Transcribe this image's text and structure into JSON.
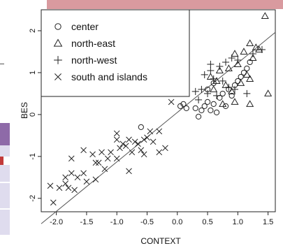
{
  "colors": {
    "topbar": "#d99a9f",
    "accent_purple": "#8e6aa8",
    "light_panel": "#dfdcee",
    "accent_red": "#c23a3a"
  },
  "chart_data": {
    "type": "scatter",
    "xlabel": "CONTEXT",
    "ylabel": "BES",
    "xlim": [
      -2.25,
      1.62
    ],
    "ylim": [
      -2.32,
      2.5
    ],
    "x_ticks": [
      "-2.0",
      "-1.5",
      "-1.0",
      "-0.5",
      "0.0",
      "0.5",
      "1.0",
      "1.5"
    ],
    "y_ticks": [
      "-2",
      "-1",
      "0",
      "1",
      "2"
    ],
    "legend_position": "top-left",
    "legend": [
      {
        "marker": "circle",
        "label": "center"
      },
      {
        "marker": "triangle",
        "label": "north-east"
      },
      {
        "marker": "plus",
        "label": "north-west"
      },
      {
        "marker": "x",
        "label": "south and islands"
      }
    ],
    "fit_line": {
      "intercept": 0.05,
      "slope": 1.18
    },
    "series": [
      {
        "name": "center",
        "marker": "circle",
        "points": [
          [
            -0.6,
            -0.3
          ],
          [
            0.05,
            0.2
          ],
          [
            0.1,
            0.25
          ],
          [
            0.15,
            0.15
          ],
          [
            0.3,
            0.15
          ],
          [
            0.35,
            -0.05
          ],
          [
            0.4,
            0.1
          ],
          [
            0.45,
            0.2
          ],
          [
            0.5,
            0.3
          ],
          [
            0.55,
            0.1
          ],
          [
            0.6,
            0.25
          ],
          [
            0.65,
            0.05
          ],
          [
            0.7,
            0.4
          ],
          [
            0.75,
            0.5
          ],
          [
            0.8,
            0.2
          ],
          [
            0.85,
            0.6
          ],
          [
            0.9,
            0.45
          ],
          [
            0.95,
            0.7
          ],
          [
            1.0,
            0.8
          ],
          [
            1.05,
            0.9
          ],
          [
            1.1,
            1.0
          ],
          [
            1.15,
            1.1
          ],
          [
            1.2,
            1.25
          ],
          [
            0.5,
            0.6
          ],
          [
            0.6,
            0.75
          ]
        ]
      },
      {
        "name": "north-east",
        "marker": "triangle",
        "points": [
          [
            1.45,
            2.35
          ],
          [
            1.2,
            1.7
          ],
          [
            1.3,
            1.6
          ],
          [
            1.1,
            1.5
          ],
          [
            0.95,
            1.45
          ],
          [
            1.25,
            1.35
          ],
          [
            1.0,
            1.2
          ],
          [
            0.85,
            1.1
          ],
          [
            0.7,
            1.05
          ],
          [
            1.15,
            0.95
          ],
          [
            0.65,
            0.8
          ],
          [
            0.8,
            0.7
          ],
          [
            0.9,
            0.55
          ],
          [
            1.05,
            0.75
          ],
          [
            1.2,
            0.85
          ],
          [
            1.5,
            0.5
          ],
          [
            0.95,
            0.3
          ],
          [
            1.2,
            0.25
          ],
          [
            0.75,
            0.25
          ],
          [
            0.55,
            0.9
          ],
          [
            1.35,
            1.55
          ],
          [
            0.6,
            0.6
          ]
        ]
      },
      {
        "name": "north-west",
        "marker": "plus",
        "points": [
          [
            1.4,
            1.55
          ],
          [
            1.25,
            1.45
          ],
          [
            0.9,
            1.35
          ],
          [
            0.8,
            1.25
          ],
          [
            0.7,
            1.15
          ],
          [
            0.55,
            1.05
          ],
          [
            0.45,
            0.95
          ],
          [
            0.6,
            0.85
          ],
          [
            0.75,
            0.8
          ],
          [
            0.85,
            0.65
          ],
          [
            0.95,
            0.6
          ],
          [
            1.15,
            0.5
          ],
          [
            0.5,
            0.5
          ],
          [
            0.4,
            0.6
          ],
          [
            0.35,
            0.35
          ],
          [
            0.65,
            0.45
          ],
          [
            1.0,
            1.3
          ],
          [
            0.3,
            0.55
          ],
          [
            0.55,
            1.2
          ]
        ]
      },
      {
        "name": "south and islands",
        "marker": "x",
        "points": [
          [
            -2.05,
            -2.1
          ],
          [
            -2.1,
            -1.7
          ],
          [
            -1.95,
            -1.75
          ],
          [
            -1.85,
            -1.65
          ],
          [
            -1.8,
            -1.75
          ],
          [
            -1.75,
            -1.4
          ],
          [
            -1.7,
            -1.8
          ],
          [
            -1.65,
            -1.5
          ],
          [
            -1.55,
            -1.4
          ],
          [
            -1.5,
            -1.6
          ],
          [
            -1.35,
            -1.55
          ],
          [
            -1.3,
            -1.15
          ],
          [
            -1.25,
            -0.9
          ],
          [
            -1.15,
            -1.05
          ],
          [
            -1.1,
            -0.9
          ],
          [
            -1.0,
            -1.05
          ],
          [
            -0.95,
            -0.8
          ],
          [
            -0.9,
            -0.7
          ],
          [
            -0.85,
            -0.75
          ],
          [
            -0.8,
            -0.6
          ],
          [
            -0.75,
            -0.9
          ],
          [
            -0.7,
            -0.65
          ],
          [
            -0.65,
            -0.7
          ],
          [
            -0.6,
            -0.85
          ],
          [
            -0.55,
            -0.6
          ],
          [
            -0.5,
            -0.55
          ],
          [
            -0.45,
            -0.4
          ],
          [
            -0.4,
            -0.65
          ],
          [
            -0.3,
            -0.9
          ],
          [
            -0.2,
            -0.8
          ],
          [
            -0.3,
            -0.4
          ],
          [
            -0.55,
            -0.95
          ],
          [
            -0.8,
            -1.35
          ],
          [
            -1.0,
            -0.45
          ],
          [
            -1.0,
            -0.6
          ],
          [
            -1.55,
            -0.85
          ],
          [
            -1.4,
            -0.95
          ],
          [
            -1.2,
            -1.3
          ],
          [
            -1.35,
            -1.15
          ],
          [
            -1.75,
            -1.05
          ],
          [
            -1.85,
            -1.5
          ],
          [
            -0.1,
            0.3
          ]
        ]
      }
    ]
  }
}
